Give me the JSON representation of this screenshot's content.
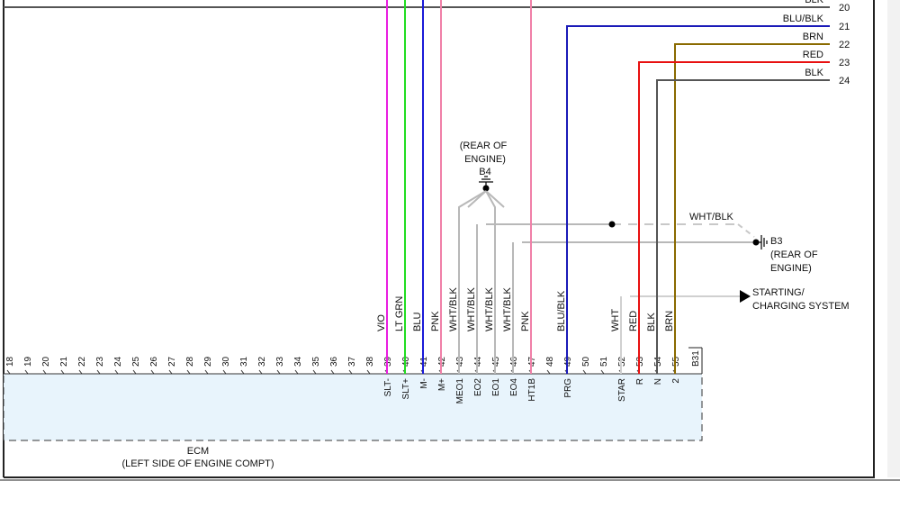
{
  "colors": {
    "VIO": "#e91ee0",
    "LT GRN": "#22dd22",
    "BLU": "#1a1ad8",
    "PNK": "#f080a8",
    "WHT/BLK": "#b8b8b8",
    "BLU/BLK": "#1a1ab8",
    "WHT": "#d0d0d0",
    "RED": "#e81010",
    "BLK": "#555555",
    "BRN": "#8a6a00",
    "ECM_FILL": "#e8f4fc"
  },
  "right_connector": [
    {
      "num": "20",
      "wire": "BLK"
    },
    {
      "num": "21",
      "wire": "BLU/BLK"
    },
    {
      "num": "22",
      "wire": "BRN"
    },
    {
      "num": "23",
      "wire": "RED"
    },
    {
      "num": "24",
      "wire": "BLK"
    }
  ],
  "ground_b4": {
    "id": "B4",
    "line1": "(REAR OF",
    "line2": "ENGINE)"
  },
  "ground_b3": {
    "id": "B3",
    "line1": "(REAR OF",
    "line2": "ENGINE)",
    "wire": "WHT/BLK"
  },
  "starting": {
    "line1": "STARTING/",
    "line2": "CHARGING SYSTEM"
  },
  "ecm": {
    "title": "ECM",
    "subtitle": "(LEFT SIDE OF ENGINE COMPT)",
    "connector_id": "B31"
  },
  "ecm_pins": [
    "18",
    "19",
    "20",
    "21",
    "22",
    "23",
    "24",
    "25",
    "26",
    "27",
    "28",
    "29",
    "30",
    "31",
    "32",
    "33",
    "34",
    "35",
    "36",
    "37",
    "38",
    "39",
    "40",
    "41",
    "42",
    "43",
    "44",
    "45",
    "46",
    "47",
    "48",
    "49",
    "50",
    "51",
    "52",
    "53",
    "54",
    "55"
  ],
  "wires": [
    {
      "pin": "39",
      "color": "VIO",
      "label": "VIO",
      "signal": "SLT-"
    },
    {
      "pin": "40",
      "color": "LT GRN",
      "label": "LT GRN",
      "signal": "SLT+"
    },
    {
      "pin": "41",
      "color": "BLU",
      "label": "BLU",
      "signal": "M-"
    },
    {
      "pin": "42",
      "color": "PNK",
      "label": "PNK",
      "signal": "M+"
    },
    {
      "pin": "43",
      "color": "WHT/BLK",
      "label": "WHT/BLK",
      "signal": "MEO1"
    },
    {
      "pin": "44",
      "color": "WHT/BLK",
      "label": "WHT/BLK",
      "signal": "EO2"
    },
    {
      "pin": "45",
      "color": "WHT/BLK",
      "label": "WHT/BLK",
      "signal": "EO1"
    },
    {
      "pin": "46",
      "color": "WHT/BLK",
      "label": "WHT/BLK",
      "signal": "EO4"
    },
    {
      "pin": "47",
      "color": "PNK",
      "label": "PNK",
      "signal": "HT1B"
    },
    {
      "pin": "49",
      "color": "BLU/BLK",
      "label": "BLU/BLK",
      "signal": "PRG"
    },
    {
      "pin": "52",
      "color": "WHT",
      "label": "WHT",
      "signal": "STAR"
    },
    {
      "pin": "53",
      "color": "RED",
      "label": "RED",
      "signal": "R"
    },
    {
      "pin": "54",
      "color": "BLK",
      "label": "BLK",
      "signal": "N"
    },
    {
      "pin": "55",
      "color": "BRN",
      "label": "BRN",
      "signal": "2"
    }
  ]
}
